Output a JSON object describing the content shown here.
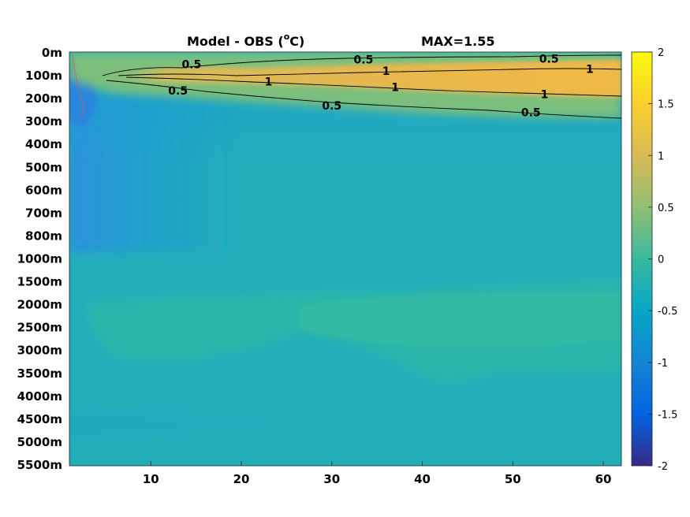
{
  "chart_data": {
    "type": "heatmap",
    "title": "Model - OBS (",
    "title_unit_sup": "o",
    "title_unit_end": "C)",
    "annotation": "MAX=1.55",
    "xlabel": "",
    "ylabel": "",
    "x_ticks": [
      10,
      20,
      30,
      40,
      50,
      60
    ],
    "xlim": [
      1,
      62
    ],
    "y_categories": [
      "0m",
      "100m",
      "200m",
      "300m",
      "400m",
      "500m",
      "600m",
      "700m",
      "800m",
      "1000m",
      "1500m",
      "2000m",
      "2500m",
      "3000m",
      "3500m",
      "4000m",
      "4500m",
      "5000m",
      "5500m"
    ],
    "colorbar": {
      "colormap": "parula",
      "clim": [
        -2,
        2
      ],
      "ticks": [
        2,
        1.5,
        1,
        0.5,
        0,
        -0.5,
        -1,
        -1.5,
        -2
      ],
      "tick_labels": [
        "2",
        "1.5",
        "1",
        "0.5",
        "0",
        "-0.5",
        "-1",
        "-1.5",
        "-2"
      ]
    },
    "field_description_values": {
      "background": 0.0,
      "lower_upper_left_cold": -0.45,
      "surface_warm_core_max": 1.55,
      "deep_warm_patch": 0.2,
      "bottom_anomaly": 0.1
    },
    "contours": [
      {
        "level": 0.5,
        "label": "0.5"
      },
      {
        "level": 1,
        "label": "1"
      }
    ],
    "contour_labels": [
      {
        "text": "0.5",
        "x": 14.5,
        "depth_index": 0.5
      },
      {
        "text": "0.5",
        "x": 33.5,
        "depth_index": 0.3
      },
      {
        "text": "0.5",
        "x": 54,
        "depth_index": 0.25
      },
      {
        "text": "1",
        "x": 36,
        "depth_index": 0.8
      },
      {
        "text": "1",
        "x": 58.5,
        "depth_index": 0.7
      },
      {
        "text": "1",
        "x": 23,
        "depth_index": 1.25
      },
      {
        "text": "1",
        "x": 37,
        "depth_index": 1.5
      },
      {
        "text": "1",
        "x": 53.5,
        "depth_index": 1.8
      },
      {
        "text": "0.5",
        "x": 13,
        "depth_index": 1.65
      },
      {
        "text": "0.5",
        "x": 30,
        "depth_index": 2.3
      },
      {
        "text": "0.5",
        "x": 52,
        "depth_index": 2.6
      }
    ]
  }
}
